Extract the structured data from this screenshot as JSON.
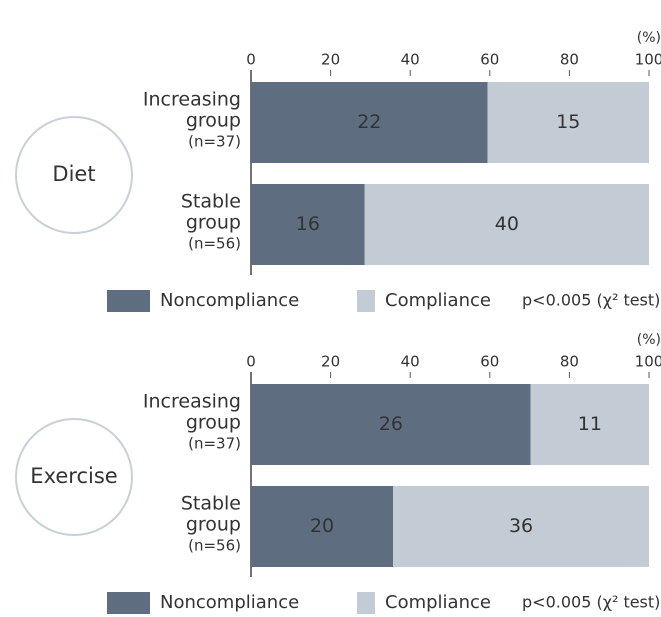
{
  "chart_data": [
    {
      "type": "bar",
      "orientation": "horizontal",
      "stacked": true,
      "label": "Diet",
      "categories": [
        [
          "Increasing",
          "group",
          "(n=37)"
        ],
        [
          "Stable",
          "group",
          "(n=56)"
        ]
      ],
      "series": [
        {
          "name": "Noncompliance",
          "color": "#5e6e80",
          "values": [
            22,
            16
          ]
        },
        {
          "name": "Compliance",
          "color": "#c3ccd4",
          "values": [
            15,
            40
          ]
        }
      ],
      "xlim": [
        0,
        100
      ],
      "xticks": [
        0,
        20,
        40,
        60,
        80,
        100
      ],
      "x_unit": "(%)",
      "annotation": "p<0.005 (χ² test)"
    },
    {
      "type": "bar",
      "orientation": "horizontal",
      "stacked": true,
      "label": "Exercise",
      "categories": [
        [
          "Increasing",
          "group",
          "(n=37)"
        ],
        [
          "Stable",
          "group",
          "(n=56)"
        ]
      ],
      "series": [
        {
          "name": "Noncompliance",
          "color": "#5e6e80",
          "values": [
            26,
            20
          ]
        },
        {
          "name": "Compliance",
          "color": "#c3ccd4",
          "values": [
            11,
            36
          ]
        }
      ],
      "xlim": [
        0,
        100
      ],
      "xticks": [
        0,
        20,
        40,
        60,
        80,
        100
      ],
      "x_unit": "(%)",
      "annotation": "p<0.005 (χ² test)"
    }
  ]
}
